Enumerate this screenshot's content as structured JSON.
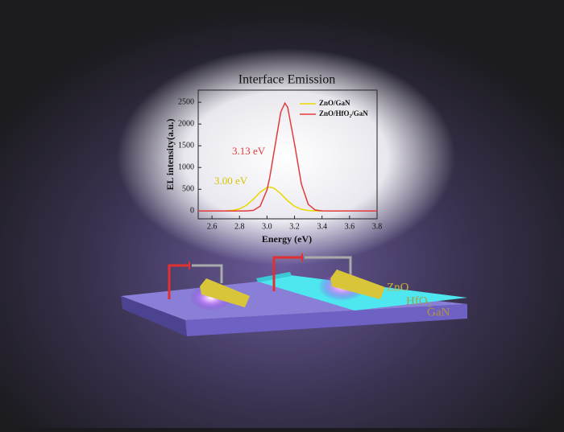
{
  "chart_data": {
    "type": "line",
    "title": "Interface Emission",
    "x_label": "Energy (eV)",
    "y_label": "EL intensity(a.u.)",
    "x": [
      2.5,
      2.55,
      2.6,
      2.65,
      2.7,
      2.75,
      2.8,
      2.85,
      2.9,
      2.95,
      3.0,
      3.02,
      3.05,
      3.1,
      3.13,
      3.15,
      3.2,
      3.25,
      3.3,
      3.35,
      3.4,
      3.45,
      3.5,
      3.55,
      3.6,
      3.65,
      3.7,
      3.75,
      3.8
    ],
    "series": [
      {
        "name": "ZnO/GaN",
        "color": "#e8d900",
        "values": [
          0,
          0,
          0,
          1,
          3,
          14,
          49,
          130,
          268,
          431,
          539,
          550,
          526,
          399,
          300,
          236,
          109,
          39,
          11,
          2,
          0,
          0,
          0,
          0,
          0,
          0,
          0,
          0,
          0
        ]
      },
      {
        "name": "ZnO/HfO₂/GaN",
        "color": "#e23b3b",
        "values": [
          0,
          0,
          0,
          0,
          0,
          0,
          0,
          1,
          15,
          109,
          486,
          772,
          1338,
          2274,
          2480,
          2386,
          1546,
          619,
          153,
          23,
          2,
          0,
          0,
          0,
          0,
          0,
          0,
          0,
          0
        ]
      }
    ],
    "annotations": [
      "3.13 eV",
      "3.00 eV"
    ],
    "xlim": [
      2.5,
      3.8
    ],
    "xticks": [
      2.6,
      2.8,
      {
        "value": 3,
        "label": "3.0"
      },
      3.2,
      3.4,
      3.6,
      3.8
    ],
    "ylim": [
      -180,
      2780
    ],
    "yticks": [
      0,
      500,
      1000,
      1500,
      2000,
      2500
    ],
    "legend": "upper right"
  },
  "illustration": {
    "labels": [
      "ZnO",
      "HfO₂",
      "GaN"
    ]
  }
}
